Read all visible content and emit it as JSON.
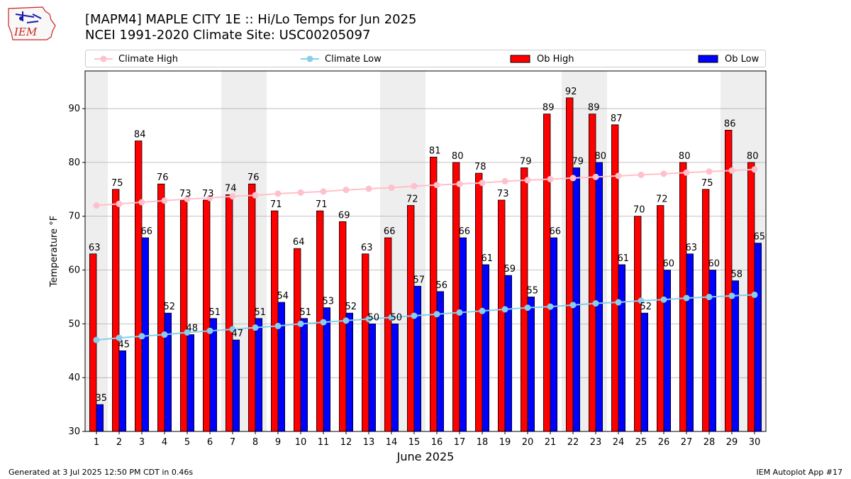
{
  "logo": {
    "text": "IEM"
  },
  "title_line1": "[MAPM4] MAPLE CITY 1E :: Hi/Lo Temps for Jun 2025",
  "title_line2": "NCEI 1991-2020 Climate Site: USC00205097",
  "legend": {
    "climate_high": "Climate High",
    "climate_low": "Climate Low",
    "ob_high": "Ob High",
    "ob_low": "Ob Low"
  },
  "colors": {
    "ob_high": "#ff0000",
    "ob_low": "#0000ff",
    "climate_high": "#ffc0cb",
    "climate_low": "#87ceeb",
    "weekend_band": "#eeeeee",
    "grid": "#b0b0b0"
  },
  "footer": {
    "left": "Generated at 3 Jul 2025 12:50 PM CDT in 0.46s",
    "right": "IEM Autoplot App #17"
  },
  "chart_data": {
    "type": "bar",
    "xlabel": "June 2025",
    "ylabel": "Temperature °F",
    "ylim": [
      30,
      97
    ],
    "yticks": [
      30,
      40,
      50,
      60,
      70,
      80,
      90
    ],
    "grid": "y",
    "legend_position": "top",
    "categories": [
      "1",
      "2",
      "3",
      "4",
      "5",
      "6",
      "7",
      "8",
      "9",
      "10",
      "11",
      "12",
      "13",
      "14",
      "15",
      "16",
      "17",
      "18",
      "19",
      "20",
      "21",
      "22",
      "23",
      "24",
      "25",
      "26",
      "27",
      "28",
      "29",
      "30"
    ],
    "shaded_days": [
      1,
      7,
      8,
      14,
      15,
      22,
      23,
      29,
      30
    ],
    "series": [
      {
        "name": "Ob High",
        "kind": "bar",
        "values": [
          63,
          75,
          84,
          76,
          73,
          73,
          74,
          76,
          71,
          64,
          71,
          69,
          63,
          66,
          72,
          81,
          80,
          78,
          73,
          79,
          89,
          92,
          89,
          87,
          70,
          72,
          80,
          75,
          86,
          80
        ]
      },
      {
        "name": "Ob Low",
        "kind": "bar",
        "values": [
          35,
          45,
          66,
          52,
          48,
          51,
          47,
          51,
          54,
          51,
          53,
          52,
          50,
          50,
          57,
          56,
          66,
          61,
          59,
          55,
          66,
          79,
          80,
          61,
          52,
          60,
          63,
          60,
          58,
          65
        ]
      },
      {
        "name": "Climate High",
        "kind": "line",
        "values": [
          72.0,
          72.3,
          72.6,
          72.9,
          73.2,
          73.4,
          73.7,
          73.9,
          74.2,
          74.4,
          74.6,
          74.9,
          75.1,
          75.3,
          75.6,
          75.8,
          76.0,
          76.2,
          76.5,
          76.7,
          76.9,
          77.1,
          77.3,
          77.5,
          77.7,
          77.9,
          78.1,
          78.3,
          78.5,
          78.7
        ]
      },
      {
        "name": "Climate Low",
        "kind": "line",
        "values": [
          47.0,
          47.4,
          47.7,
          48.0,
          48.4,
          48.7,
          49.0,
          49.3,
          49.6,
          50.0,
          50.3,
          50.6,
          50.9,
          51.2,
          51.5,
          51.8,
          52.1,
          52.4,
          52.7,
          53.0,
          53.2,
          53.5,
          53.8,
          54.0,
          54.3,
          54.5,
          54.8,
          55.0,
          55.2,
          55.4
        ]
      }
    ]
  }
}
